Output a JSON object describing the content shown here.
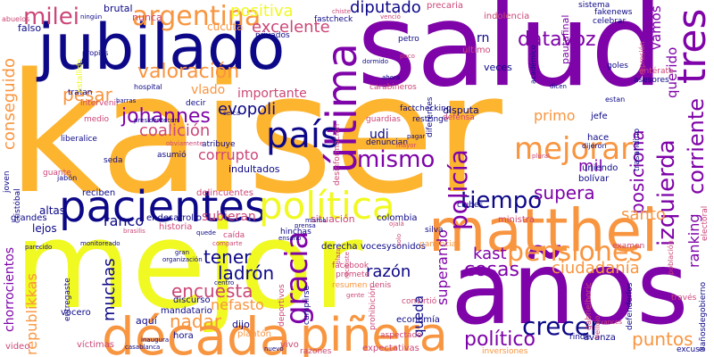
{
  "palette": {
    "navy": "#0d0887",
    "purple": "#7e03a8",
    "magenta": "#cc4778",
    "orange": "#f89540",
    "gold": "#fdb42f",
    "yellow": "#f0f921"
  },
  "words": [
    {
      "text": "kaiser",
      "color": "gold",
      "rot": 0
    },
    {
      "text": "salud",
      "color": "purple",
      "rot": 0
    },
    {
      "text": "mejor",
      "color": "yellow",
      "rot": 0
    },
    {
      "text": "años",
      "color": "purple",
      "rot": 0
    },
    {
      "text": "jubilado",
      "color": "navy",
      "rot": 0
    },
    {
      "text": "década",
      "color": "orange",
      "rot": 0
    },
    {
      "text": "matthei",
      "color": "orange",
      "rot": 0
    },
    {
      "text": "piñera",
      "color": "orange",
      "rot": 0
    },
    {
      "text": "pacientes",
      "color": "navy",
      "rot": 0
    },
    {
      "text": "política",
      "color": "yellow",
      "rot": 0
    },
    {
      "text": "última",
      "color": "purple",
      "rot": -90
    },
    {
      "text": "tres",
      "color": "purple",
      "rot": -90
    },
    {
      "text": "argentina",
      "color": "orange",
      "rot": 0
    },
    {
      "text": "milei",
      "color": "magenta",
      "rot": 0
    },
    {
      "text": "país",
      "color": "navy",
      "rot": 0
    },
    {
      "text": "mejorar",
      "color": "orange",
      "rot": 0
    },
    {
      "text": "mismo",
      "color": "purple",
      "rot": 0
    },
    {
      "text": "tiempo",
      "color": "navy",
      "rot": 0
    },
    {
      "text": "gracia",
      "color": "purple",
      "rot": -90
    },
    {
      "text": "policía",
      "color": "purple",
      "rot": -90
    },
    {
      "text": "pensiones",
      "color": "orange",
      "rot": 0
    },
    {
      "text": "crecer",
      "color": "navy",
      "rot": 0
    },
    {
      "text": "izquierda",
      "color": "purple",
      "rot": -90
    },
    {
      "text": "corriente",
      "color": "purple",
      "rot": -90
    },
    {
      "text": "diputado",
      "color": "navy",
      "rot": 0
    },
    {
      "text": "datavoz",
      "color": "purple",
      "rot": 0
    },
    {
      "text": "positiva",
      "color": "yellow",
      "rot": 0
    },
    {
      "text": "excelente",
      "color": "magenta",
      "rot": 0
    },
    {
      "text": "valoración",
      "color": "orange",
      "rot": 0
    },
    {
      "text": "pesar",
      "color": "orange",
      "rot": 0
    },
    {
      "text": "johannes",
      "color": "purple",
      "rot": 0
    },
    {
      "text": "evopoli",
      "color": "navy",
      "rot": 0
    },
    {
      "text": "coalición",
      "color": "magenta",
      "rot": 0
    },
    {
      "text": "corrupto",
      "color": "magenta",
      "rot": 0
    },
    {
      "text": "encuesta",
      "color": "magenta",
      "rot": 0
    },
    {
      "text": "ladrón",
      "color": "navy",
      "rot": 0
    },
    {
      "text": "nefasto",
      "color": "orange",
      "rot": 0
    },
    {
      "text": "nadar",
      "color": "orange",
      "rot": 0
    },
    {
      "text": "tener",
      "color": "navy",
      "rot": 0
    },
    {
      "text": "muchas",
      "color": "navy",
      "rot": -90
    },
    {
      "text": "cosas",
      "color": "purple",
      "rot": 0
    },
    {
      "text": "kast",
      "color": "purple",
      "rot": 0
    },
    {
      "text": "político",
      "color": "purple",
      "rot": 0
    },
    {
      "text": "puntos",
      "color": "orange",
      "rot": 0
    },
    {
      "text": "supera",
      "color": "purple",
      "rot": 0
    },
    {
      "text": "posiciona",
      "color": "purple",
      "rot": -90
    },
    {
      "text": "ranking",
      "color": "purple",
      "rot": -90
    },
    {
      "text": "santo",
      "color": "orange",
      "rot": 0
    },
    {
      "text": "conseguido",
      "color": "orange",
      "rot": -90
    },
    {
      "text": "republikkas",
      "color": "orange",
      "rot": -90
    },
    {
      "text": "chorrocientos",
      "color": "purple",
      "rot": -90
    },
    {
      "text": "vamos",
      "color": "purple",
      "rot": -90
    },
    {
      "text": "querido",
      "color": "purple",
      "rot": -90
    },
    {
      "text": "primo",
      "color": "orange",
      "rot": 0
    },
    {
      "text": "mil",
      "color": "purple",
      "rot": 0
    },
    {
      "text": "superando",
      "color": "purple",
      "rot": -90
    },
    {
      "text": "ciudadanía",
      "color": "orange",
      "rot": 0
    },
    {
      "text": "razón",
      "color": "navy",
      "rot": 0
    },
    {
      "text": "queda",
      "color": "navy",
      "rot": -90
    },
    {
      "text": "importante",
      "color": "magenta",
      "rot": 0
    },
    {
      "text": "vlado",
      "color": "orange",
      "rot": 0
    },
    {
      "text": "udi",
      "color": "navy",
      "rot": 0
    },
    {
      "text": "rn",
      "color": "navy",
      "rot": 0
    },
    {
      "text": "cucuta",
      "color": "orange",
      "rot": 0
    },
    {
      "text": "brutal",
      "color": "navy",
      "rot": 0
    },
    {
      "text": "falso",
      "color": "navy",
      "rot": 0
    },
    {
      "text": "nunca",
      "color": "magenta",
      "rot": 0
    },
    {
      "text": "altas",
      "color": "navy",
      "rot": 0
    },
    {
      "text": "lejos",
      "color": "navy",
      "rot": 0
    },
    {
      "text": "ranco",
      "color": "navy",
      "rot": 0
    },
    {
      "text": "subieran",
      "color": "magenta",
      "rot": 0
    },
    {
      "text": "indultados",
      "color": "navy",
      "rot": 0
    },
    {
      "text": "aquí",
      "color": "navy",
      "rot": 0
    },
    {
      "text": "dijo",
      "color": "navy",
      "rot": 0
    },
    {
      "text": "vivo",
      "color": "magenta",
      "rot": 0
    },
    {
      "text": "grandes",
      "color": "navy",
      "rot": 0
    },
    {
      "text": "reciben",
      "color": "navy",
      "rot": 0
    },
    {
      "text": "endesarrollo",
      "color": "navy",
      "rot": 0
    },
    {
      "text": "historia",
      "color": "magenta",
      "rot": 0
    },
    {
      "text": "delincuentes",
      "color": "magenta",
      "rot": 0
    },
    {
      "text": "situación",
      "color": "magenta",
      "rot": 0
    },
    {
      "text": "colombia",
      "color": "navy",
      "rot": 0
    },
    {
      "text": "vocesysonidos",
      "color": "navy",
      "rot": 0
    },
    {
      "text": "derecha",
      "color": "navy",
      "rot": 0
    },
    {
      "text": "silva",
      "color": "navy",
      "rot": 0
    },
    {
      "text": "clubes",
      "color": "navy",
      "rot": 0
    },
    {
      "text": "ministra",
      "color": "magenta",
      "rot": 0
    },
    {
      "text": "bolívar",
      "color": "navy",
      "rot": 0
    },
    {
      "text": "disputa",
      "color": "navy",
      "rot": 0
    },
    {
      "text": "jefe",
      "color": "navy",
      "rot": 0
    },
    {
      "text": "hace",
      "color": "navy",
      "rot": 0
    },
    {
      "text": "uniendo",
      "color": "navy",
      "rot": 0
    },
    {
      "text": "video",
      "color": "magenta",
      "rot": 0
    },
    {
      "text": "víctimas",
      "color": "magenta",
      "rot": 0
    },
    {
      "text": "vocero",
      "color": "navy",
      "rot": 0
    },
    {
      "text": "mandatario",
      "color": "navy",
      "rot": 0
    },
    {
      "text": "hora",
      "color": "navy",
      "rot": 0
    },
    {
      "text": "plantón",
      "color": "orange",
      "rot": 0
    },
    {
      "text": "razones",
      "color": "magenta",
      "rot": 0
    },
    {
      "text": "expectativas",
      "color": "magenta",
      "rot": 0
    },
    {
      "text": "inversiones",
      "color": "orange",
      "rot": 0
    },
    {
      "text": "avanza",
      "color": "navy",
      "rot": 0
    },
    {
      "text": "rinde",
      "color": "navy",
      "rot": 0
    },
    {
      "text": "economía",
      "color": "navy",
      "rot": 0
    },
    {
      "text": "resumen",
      "color": "orange",
      "rot": 0
    },
    {
      "text": "promete",
      "color": "magenta",
      "rot": 0
    },
    {
      "text": "facebook",
      "color": "magenta",
      "rot": 0
    },
    {
      "text": "denis",
      "color": "magenta",
      "rot": 0
    },
    {
      "text": "discurso",
      "color": "navy",
      "rot": 0
    },
    {
      "text": "fastcheck",
      "color": "navy",
      "rot": 0
    },
    {
      "text": "privados",
      "color": "navy",
      "rot": 0
    },
    {
      "text": "petro",
      "color": "navy",
      "rot": 0
    },
    {
      "text": "último",
      "color": "magenta",
      "rot": 0
    },
    {
      "text": "veces",
      "color": "navy",
      "rot": 0
    },
    {
      "text": "pautafinal",
      "color": "purple",
      "rot": -90
    },
    {
      "text": "precaria",
      "color": "magenta",
      "rot": 0
    },
    {
      "text": "indolencia",
      "color": "magenta",
      "rot": 0
    },
    {
      "text": "sistema",
      "color": "navy",
      "rot": 0
    },
    {
      "text": "fakenews",
      "color": "navy",
      "rot": 0
    },
    {
      "text": "celebrar",
      "color": "navy",
      "rot": 0
    },
    {
      "text": "entérate",
      "color": "magenta",
      "rot": 0
    },
    {
      "text": "asesores",
      "color": "navy",
      "rot": 0
    },
    {
      "text": "goles",
      "color": "navy",
      "rot": 0
    },
    {
      "text": "tratan",
      "color": "navy",
      "rot": 0
    },
    {
      "text": "intervenir",
      "color": "magenta",
      "rot": 0
    },
    {
      "text": "decir",
      "color": "navy",
      "rot": 0
    },
    {
      "text": "carabineros",
      "color": "magenta",
      "rot": 0
    },
    {
      "text": "guardias",
      "color": "magenta",
      "rot": 0
    },
    {
      "text": "restringe",
      "color": "navy",
      "rot": 0
    },
    {
      "text": "factchecking",
      "color": "navy",
      "rot": 0
    },
    {
      "text": "defensa",
      "color": "magenta",
      "rot": 0
    },
    {
      "text": "diferentes",
      "color": "navy",
      "rot": -90
    },
    {
      "text": "denuncian",
      "color": "navy",
      "rot": 0
    },
    {
      "text": "atribuye",
      "color": "navy",
      "rot": 0
    },
    {
      "text": "asumió",
      "color": "navy",
      "rot": 0
    },
    {
      "text": "seda",
      "color": "navy",
      "rot": 0
    },
    {
      "text": "liberalice",
      "color": "navy",
      "rot": 0
    },
    {
      "text": "guante",
      "color": "magenta",
      "rot": 0
    },
    {
      "text": "trasandino",
      "color": "navy",
      "rot": -90
    },
    {
      "text": "caída",
      "color": "magenta",
      "rot": 0
    },
    {
      "text": "hinchas",
      "color": "navy",
      "rot": 0
    },
    {
      "text": "cumplirse",
      "color": "navy",
      "rot": -90
    },
    {
      "text": "convirtió",
      "color": "magenta",
      "rot": 0
    },
    {
      "text": "prohibición",
      "color": "magenta",
      "rot": -90
    },
    {
      "text": "aspectado",
      "color": "magenta",
      "rot": 0
    },
    {
      "text": "gabrielboric",
      "color": "magenta",
      "rot": -90
    },
    {
      "text": "examen",
      "color": "magenta",
      "rot": 0
    },
    {
      "text": "defenderlos",
      "color": "navy",
      "rot": -90
    },
    {
      "text": "través",
      "color": "magenta",
      "rot": 0
    },
    {
      "text": "excusa",
      "color": "navy",
      "rot": 0
    },
    {
      "text": "3añosdegobierno",
      "color": "navy",
      "rot": -90
    },
    {
      "text": "entregaste",
      "color": "navy",
      "rot": -90
    },
    {
      "text": "deportivos",
      "color": "magenta",
      "rot": -90
    },
    {
      "text": "medio",
      "color": "magenta",
      "rot": 0
    },
    {
      "text": "jabón",
      "color": "navy",
      "rot": 0
    },
    {
      "text": "cristóbal",
      "color": "navy",
      "rot": -90
    },
    {
      "text": "joven",
      "color": "navy",
      "rot": -90
    },
    {
      "text": "propios",
      "color": "navy",
      "rot": 0
    },
    {
      "text": "abuelos",
      "color": "magenta",
      "rot": 0
    },
    {
      "text": "hospital",
      "color": "navy",
      "rot": 0
    },
    {
      "text": "desinformación",
      "color": "magenta",
      "rot": -90
    },
    {
      "text": "ganancias",
      "color": "orange",
      "rot": 0
    },
    {
      "text": "estan",
      "color": "navy",
      "rot": 0
    },
    {
      "text": "electoral",
      "color": "magenta",
      "rot": -90
    },
    {
      "text": "población",
      "color": "magenta",
      "rot": -90
    },
    {
      "text": "represión",
      "color": "magenta",
      "rot": -90
    },
    {
      "text": "dijeron",
      "color": "navy",
      "rot": 0
    },
    {
      "text": "cerca",
      "color": "navy",
      "rot": 0
    },
    {
      "text": "monitoreado",
      "color": "navy",
      "rot": 0
    },
    {
      "text": "organización",
      "color": "navy",
      "rot": 0
    },
    {
      "text": "casablanca",
      "color": "navy",
      "rot": 0
    },
    {
      "text": "inaugura",
      "color": "navy",
      "rot": 0
    },
    {
      "text": "académico",
      "color": "navy",
      "rot": -90
    },
    {
      "text": "estallido",
      "color": "yellow",
      "rot": -90
    },
    {
      "text": "ningún",
      "color": "navy",
      "rot": 0
    },
    {
      "text": "presidentecon",
      "color": "navy",
      "rot": 0
    },
    {
      "text": "belloio",
      "color": "magenta",
      "rot": -90
    },
    {
      "text": "avances",
      "color": "magenta",
      "rot": 0
    },
    {
      "text": "comparte",
      "color": "magenta",
      "rot": 0
    },
    {
      "text": "ensaño",
      "color": "navy",
      "rot": 0
    },
    {
      "text": "misma",
      "color": "navy",
      "rot": 0
    },
    {
      "text": "prensa",
      "color": "navy",
      "rot": 0
    },
    {
      "text": "recibiste",
      "color": "magenta",
      "rot": -90
    },
    {
      "text": "plaza",
      "color": "magenta",
      "rot": -90
    },
    {
      "text": "solo",
      "color": "magenta",
      "rot": -90
    },
    {
      "text": "ojalá",
      "color": "magenta",
      "rot": 0
    },
    {
      "text": "parecido",
      "color": "navy",
      "rot": 0
    },
    {
      "text": "obviamente",
      "color": "magenta",
      "rot": 0
    },
    {
      "text": "brasilis",
      "color": "magenta",
      "rot": 0
    },
    {
      "text": "quede",
      "color": "navy",
      "rot": 0
    },
    {
      "text": "plural",
      "color": "magenta",
      "rot": 0
    },
    {
      "text": "barras",
      "color": "navy",
      "rot": 0
    },
    {
      "text": "nuevo",
      "color": "navy",
      "rot": 0
    },
    {
      "text": "chiste",
      "color": "magenta",
      "rot": 0
    },
    {
      "text": "dormido",
      "color": "navy",
      "rot": 0
    },
    {
      "text": "venció",
      "color": "magenta",
      "rot": 0
    },
    {
      "text": "pagar",
      "color": "navy",
      "rot": 0
    },
    {
      "text": "mayor",
      "color": "magenta",
      "rot": 0
    },
    {
      "text": "ahora",
      "color": "navy",
      "rot": 0
    },
    {
      "text": "dicen",
      "color": "navy",
      "rot": 0
    },
    {
      "text": "poco",
      "color": "magenta",
      "rot": 0
    },
    {
      "text": "gran",
      "color": "navy",
      "rot": 0
    },
    {
      "text": "centro",
      "color": "navy",
      "rot": 0
    },
    {
      "text": "gente",
      "color": "magenta",
      "rot": 0
    },
    {
      "text": "cuenta",
      "color": "navy",
      "rot": 0
    }
  ]
}
